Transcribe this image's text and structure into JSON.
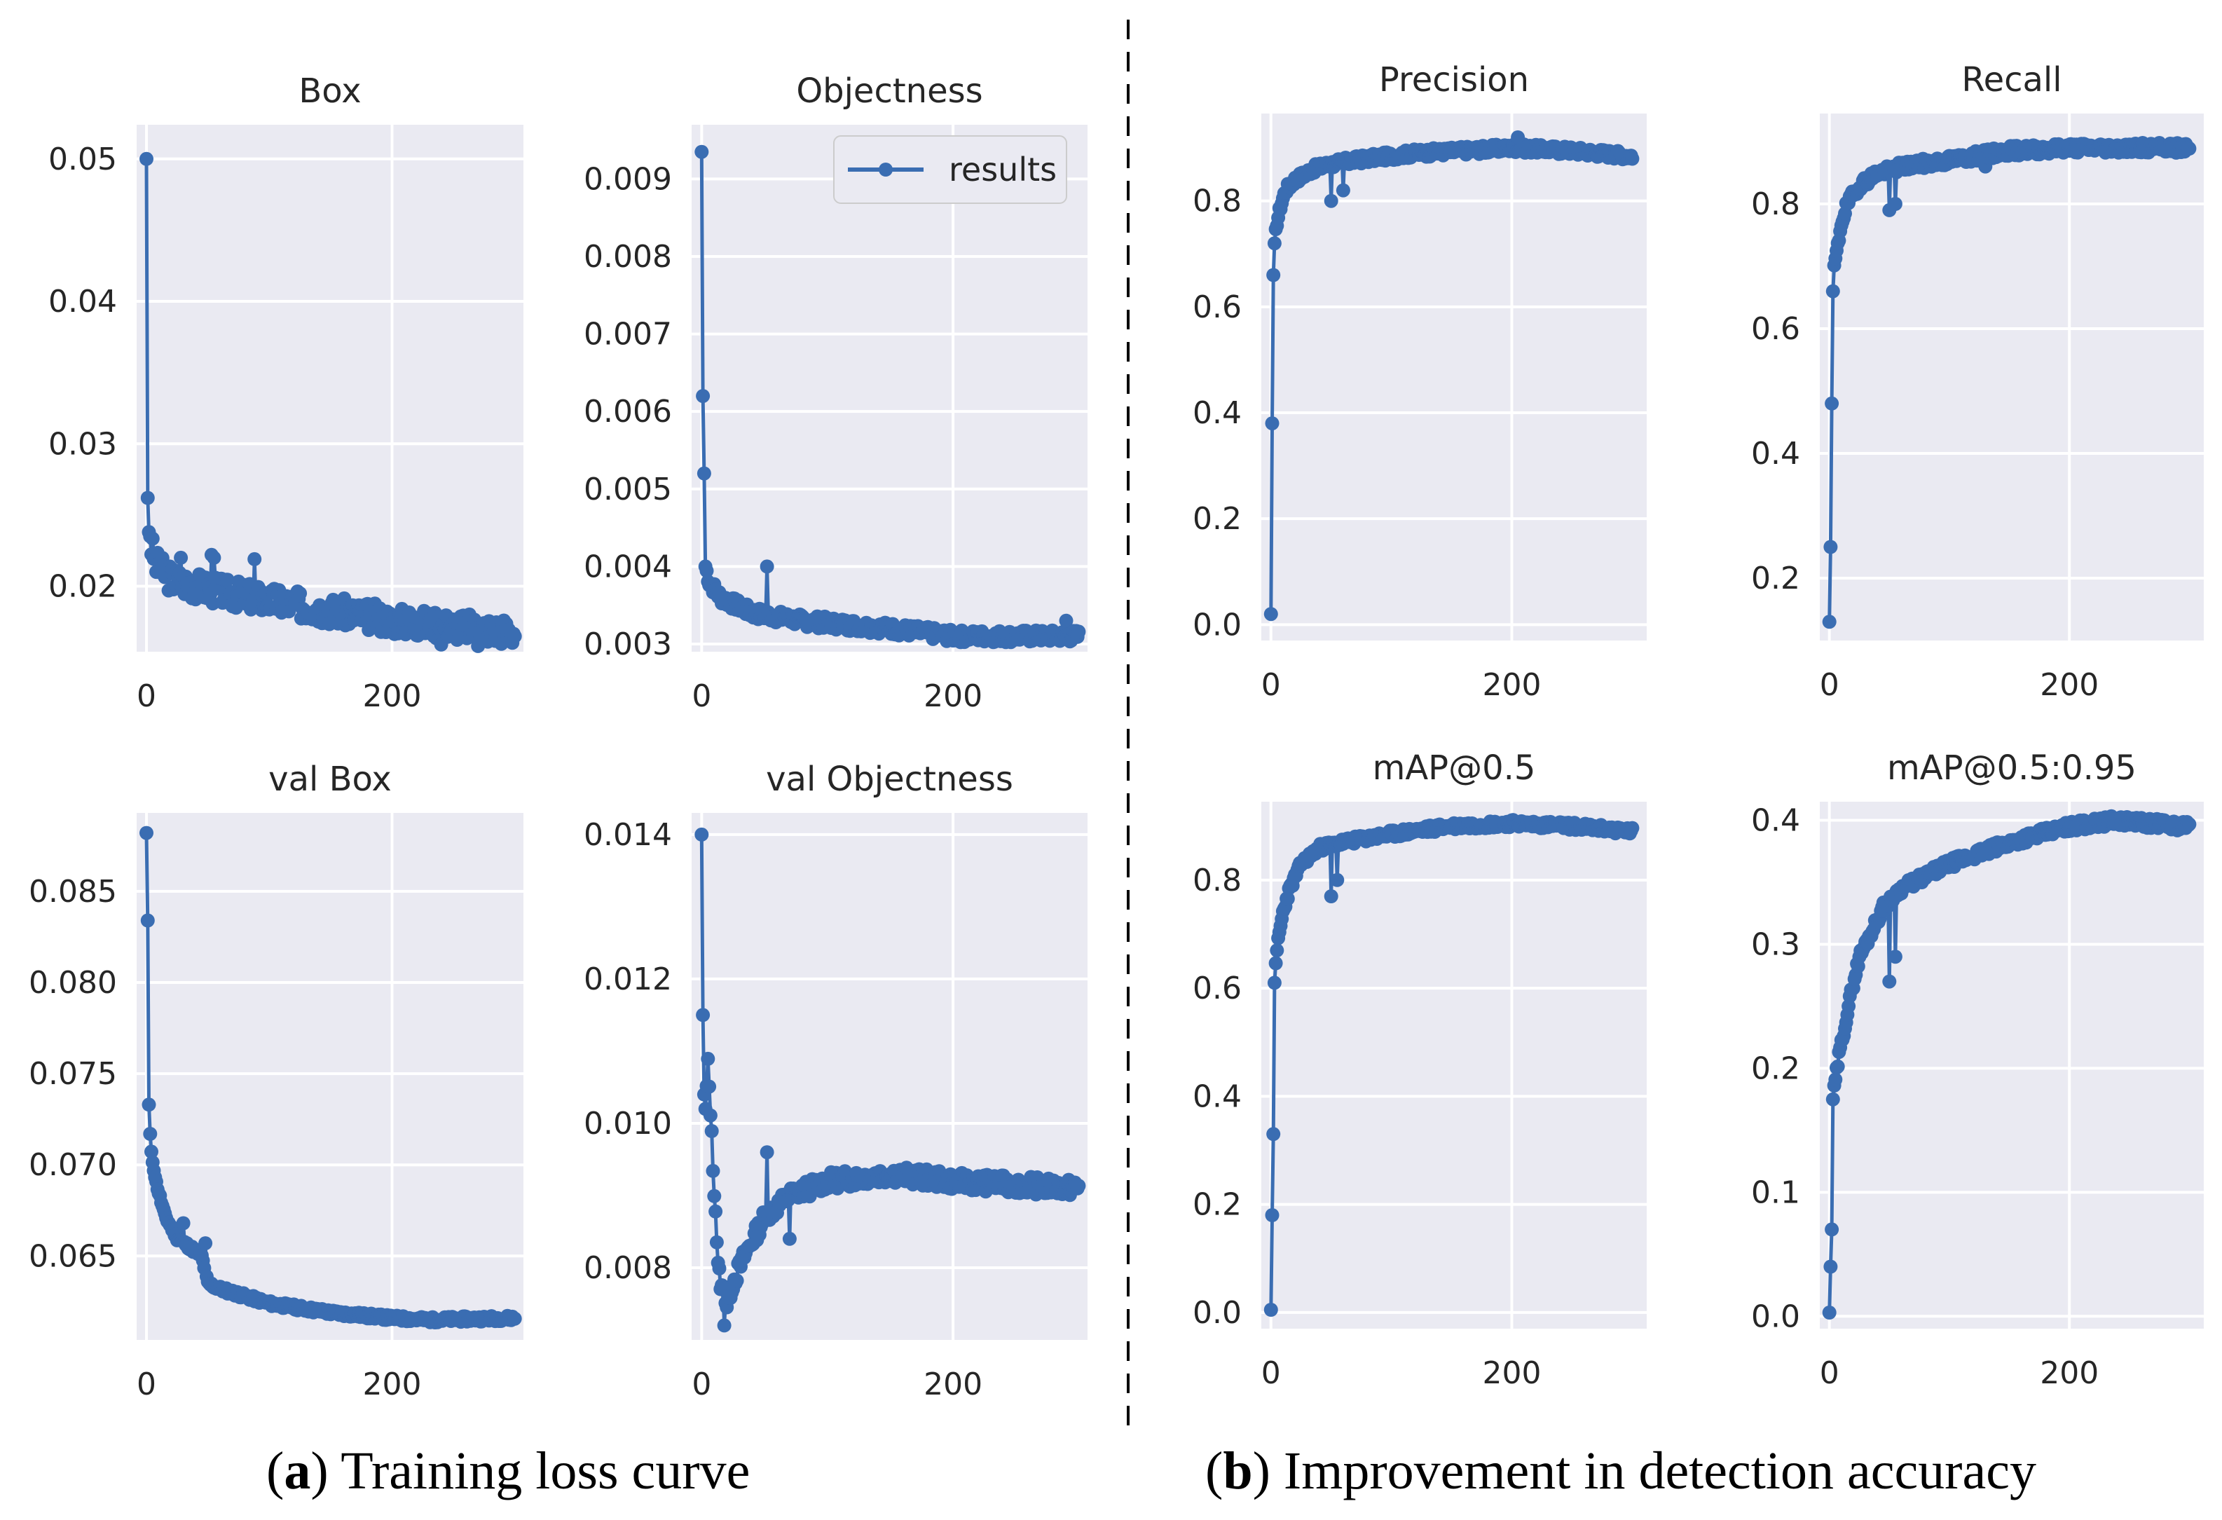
{
  "captions": {
    "a": {
      "paren_open": "(",
      "letter": "a",
      "text": ") Training loss curve"
    },
    "b": {
      "paren_open": "(",
      "letter": "b",
      "text": ") Improvement in detection accuracy"
    }
  },
  "series_color": "#3a6db2",
  "legend": {
    "label": "results"
  },
  "chart_data": [
    {
      "type": "line",
      "title": "Box",
      "xlim": [
        -8,
        307
      ],
      "ylim": [
        0.0154,
        0.0524
      ],
      "xticks": [
        0,
        200
      ],
      "yticks": [
        0.02,
        0.03,
        0.04,
        0.05
      ],
      "ytick_labels": [
        "0.02",
        "0.03",
        "0.04",
        "0.05"
      ],
      "curve": {
        "start": 0.05,
        "end": 0.0168,
        "knots": [
          [
            0,
            0.05
          ],
          [
            1,
            0.0262
          ],
          [
            2,
            0.0238
          ],
          [
            4,
            0.0228
          ],
          [
            8,
            0.0215
          ],
          [
            20,
            0.0205
          ],
          [
            50,
            0.0198
          ],
          [
            100,
            0.019
          ],
          [
            150,
            0.0183
          ],
          [
            200,
            0.0176
          ],
          [
            250,
            0.0172
          ],
          [
            300,
            0.0168
          ]
        ],
        "noise": 0.001,
        "seed": 3
      },
      "spikes": [
        [
          3,
          0.0235
        ],
        [
          10,
          0.021
        ],
        [
          28,
          0.022
        ],
        [
          53,
          0.0222
        ],
        [
          55,
          0.022
        ],
        [
          88,
          0.0219
        ],
        [
          240,
          0.0159
        ],
        [
          270,
          0.0158
        ]
      ]
    },
    {
      "type": "line",
      "title": "Objectness",
      "xlim": [
        -8,
        307
      ],
      "ylim": [
        0.0029,
        0.0097
      ],
      "xticks": [
        0,
        200
      ],
      "yticks": [
        0.003,
        0.004,
        0.005,
        0.006,
        0.007,
        0.008,
        0.009
      ],
      "ytick_labels": [
        "0.003",
        "0.004",
        "0.005",
        "0.006",
        "0.007",
        "0.008",
        "0.009"
      ],
      "curve": {
        "start": 0.00935,
        "end": 0.0031,
        "knots": [
          [
            0,
            0.00935
          ],
          [
            1,
            0.0062
          ],
          [
            2,
            0.0052
          ],
          [
            3,
            0.004
          ],
          [
            6,
            0.0038
          ],
          [
            15,
            0.0036
          ],
          [
            40,
            0.0034
          ],
          [
            80,
            0.0033
          ],
          [
            150,
            0.0032
          ],
          [
            200,
            0.0031
          ],
          [
            300,
            0.0031
          ]
        ],
        "noise": 8e-05,
        "seed": 7
      },
      "spikes": [
        [
          52,
          0.004
        ],
        [
          290,
          0.0033
        ]
      ]
    },
    {
      "type": "line",
      "title": "val Box",
      "xlim": [
        -8,
        307
      ],
      "ylim": [
        0.0604,
        0.0893
      ],
      "xticks": [
        0,
        200
      ],
      "yticks": [
        0.065,
        0.07,
        0.075,
        0.08,
        0.085
      ],
      "ytick_labels": [
        "0.065",
        "0.070",
        "0.075",
        "0.080",
        "0.085"
      ],
      "curve": {
        "start": 0.0882,
        "end": 0.0616,
        "knots": [
          [
            0,
            0.0882
          ],
          [
            1,
            0.0834
          ],
          [
            2,
            0.0733
          ],
          [
            3,
            0.0717
          ],
          [
            4,
            0.0706
          ],
          [
            8,
            0.069
          ],
          [
            15,
            0.0672
          ],
          [
            25,
            0.066
          ],
          [
            35,
            0.0655
          ],
          [
            45,
            0.065
          ],
          [
            50,
            0.0635
          ],
          [
            60,
            0.0632
          ],
          [
            80,
            0.0628
          ],
          [
            100,
            0.0624
          ],
          [
            150,
            0.0619
          ],
          [
            200,
            0.0616
          ],
          [
            230,
            0.0615
          ],
          [
            300,
            0.0616
          ]
        ],
        "noise": 0.00015,
        "seed": 11
      },
      "spikes": [
        [
          30,
          0.0668
        ],
        [
          48,
          0.0657
        ]
      ]
    },
    {
      "type": "line",
      "title": "val Objectness",
      "xlim": [
        -8,
        307
      ],
      "ylim": [
        0.007,
        0.0143
      ],
      "xticks": [
        0,
        200
      ],
      "yticks": [
        0.008,
        0.01,
        0.012,
        0.014
      ],
      "ytick_labels": [
        "0.008",
        "0.010",
        "0.012",
        "0.014"
      ],
      "curve": {
        "start": 0.014,
        "end": 0.0091,
        "knots": [
          [
            0,
            0.014
          ],
          [
            1,
            0.0115
          ],
          [
            2,
            0.0104
          ],
          [
            3,
            0.0102
          ],
          [
            5,
            0.0108
          ],
          [
            7,
            0.0102
          ],
          [
            9,
            0.0094
          ],
          [
            11,
            0.0088
          ],
          [
            13,
            0.008
          ],
          [
            16,
            0.0077
          ],
          [
            20,
            0.0075
          ],
          [
            25,
            0.0078
          ],
          [
            35,
            0.0082
          ],
          [
            50,
            0.0087
          ],
          [
            70,
            0.009
          ],
          [
            100,
            0.0092
          ],
          [
            150,
            0.0093
          ],
          [
            200,
            0.0092
          ],
          [
            300,
            0.0091
          ]
        ],
        "noise": 0.00012,
        "seed": 13
      },
      "spikes": [
        [
          18,
          0.0072
        ],
        [
          52,
          0.0096
        ],
        [
          70,
          0.0084
        ]
      ]
    },
    {
      "type": "line",
      "title": "Precision",
      "xlim": [
        -8,
        312
      ],
      "ylim": [
        -0.03,
        0.965
      ],
      "xticks": [
        0,
        200
      ],
      "yticks": [
        0.0,
        0.2,
        0.4,
        0.6,
        0.8
      ],
      "ytick_labels": [
        "0.0",
        "0.2",
        "0.4",
        "0.6",
        "0.8"
      ],
      "curve": {
        "start": 0.02,
        "end": 0.885,
        "knots": [
          [
            0,
            0.02
          ],
          [
            1,
            0.38
          ],
          [
            2,
            0.66
          ],
          [
            3,
            0.72
          ],
          [
            5,
            0.76
          ],
          [
            8,
            0.79
          ],
          [
            12,
            0.82
          ],
          [
            20,
            0.84
          ],
          [
            35,
            0.86
          ],
          [
            50,
            0.87
          ],
          [
            80,
            0.88
          ],
          [
            120,
            0.89
          ],
          [
            200,
            0.9
          ],
          [
            250,
            0.895
          ],
          [
            300,
            0.885
          ]
        ],
        "noise": 0.008,
        "seed": 17
      },
      "spikes": [
        [
          50,
          0.8
        ],
        [
          60,
          0.82
        ],
        [
          205,
          0.92
        ]
      ]
    },
    {
      "type": "line",
      "title": "Recall",
      "xlim": [
        -8,
        312
      ],
      "ylim": [
        0.1,
        0.945
      ],
      "xticks": [
        0,
        200
      ],
      "yticks": [
        0.2,
        0.4,
        0.6,
        0.8
      ],
      "ytick_labels": [
        "0.2",
        "0.4",
        "0.6",
        "0.8"
      ],
      "curve": {
        "start": 0.13,
        "end": 0.89,
        "knots": [
          [
            0,
            0.13
          ],
          [
            1,
            0.25
          ],
          [
            2,
            0.48
          ],
          [
            3,
            0.66
          ],
          [
            4,
            0.7
          ],
          [
            6,
            0.72
          ],
          [
            10,
            0.77
          ],
          [
            15,
            0.8
          ],
          [
            25,
            0.83
          ],
          [
            40,
            0.85
          ],
          [
            60,
            0.86
          ],
          [
            100,
            0.87
          ],
          [
            150,
            0.885
          ],
          [
            200,
            0.89
          ],
          [
            300,
            0.89
          ]
        ],
        "noise": 0.008,
        "seed": 19
      },
      "spikes": [
        [
          50,
          0.79
        ],
        [
          55,
          0.8
        ],
        [
          130,
          0.86
        ]
      ]
    },
    {
      "type": "line",
      "title": "mAP@0.5",
      "xlim": [
        -8,
        312
      ],
      "ylim": [
        -0.03,
        0.945
      ],
      "xticks": [
        0,
        200
      ],
      "yticks": [
        0.0,
        0.2,
        0.4,
        0.6,
        0.8
      ],
      "ytick_labels": [
        "0.0",
        "0.2",
        "0.4",
        "0.6",
        "0.8"
      ],
      "curve": {
        "start": 0.005,
        "end": 0.89,
        "knots": [
          [
            0,
            0.005
          ],
          [
            1,
            0.18
          ],
          [
            2,
            0.33
          ],
          [
            3,
            0.61
          ],
          [
            4,
            0.64
          ],
          [
            6,
            0.69
          ],
          [
            10,
            0.74
          ],
          [
            15,
            0.78
          ],
          [
            25,
            0.83
          ],
          [
            40,
            0.86
          ],
          [
            60,
            0.87
          ],
          [
            100,
            0.885
          ],
          [
            150,
            0.9
          ],
          [
            200,
            0.905
          ],
          [
            250,
            0.9
          ],
          [
            300,
            0.89
          ]
        ],
        "noise": 0.007,
        "seed": 23
      },
      "spikes": [
        [
          50,
          0.77
        ],
        [
          55,
          0.8
        ]
      ]
    },
    {
      "type": "line",
      "title": "mAP@0.5:0.95",
      "xlim": [
        -8,
        312
      ],
      "ylim": [
        -0.01,
        0.415
      ],
      "xticks": [
        0,
        200
      ],
      "yticks": [
        0.0,
        0.1,
        0.2,
        0.3,
        0.4
      ],
      "ytick_labels": [
        "0.0",
        "0.1",
        "0.2",
        "0.3",
        "0.4"
      ],
      "curve": {
        "start": 0.003,
        "end": 0.395,
        "knots": [
          [
            0,
            0.003
          ],
          [
            1,
            0.04
          ],
          [
            2,
            0.07
          ],
          [
            3,
            0.175
          ],
          [
            5,
            0.19
          ],
          [
            8,
            0.21
          ],
          [
            12,
            0.23
          ],
          [
            18,
            0.26
          ],
          [
            25,
            0.29
          ],
          [
            35,
            0.31
          ],
          [
            45,
            0.33
          ],
          [
            60,
            0.345
          ],
          [
            80,
            0.355
          ],
          [
            100,
            0.365
          ],
          [
            130,
            0.375
          ],
          [
            160,
            0.385
          ],
          [
            200,
            0.395
          ],
          [
            240,
            0.4
          ],
          [
            300,
            0.395
          ]
        ],
        "noise": 0.004,
        "seed": 29
      },
      "spikes": [
        [
          50,
          0.27
        ],
        [
          55,
          0.29
        ],
        [
          120,
          0.37
        ]
      ]
    }
  ]
}
